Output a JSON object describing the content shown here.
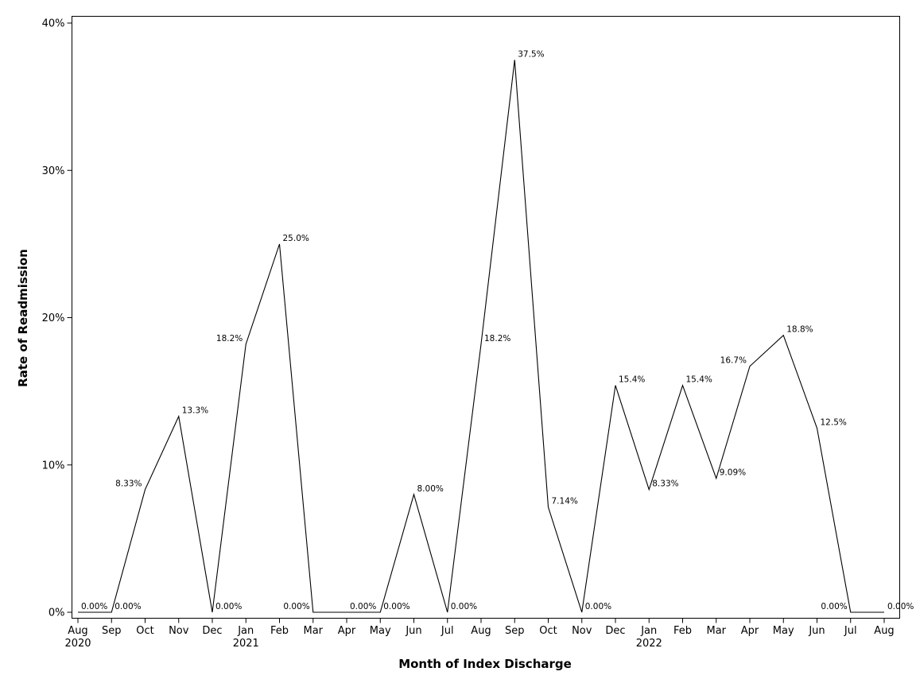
{
  "chart_data": {
    "type": "line",
    "xlabel": "Month of Index Discharge",
    "ylabel": "Rate of Readmission",
    "ylim": [
      0,
      40
    ],
    "y_ticks": [
      {
        "value": 0,
        "label": "0%"
      },
      {
        "value": 10,
        "label": "10%"
      },
      {
        "value": 20,
        "label": "20%"
      },
      {
        "value": 30,
        "label": "30%"
      },
      {
        "value": 40,
        "label": "40%"
      }
    ],
    "grid": false,
    "legend": "none",
    "x": [
      "2020-08",
      "2020-09",
      "2020-10",
      "2020-11",
      "2020-12",
      "2021-01",
      "2021-02",
      "2021-03",
      "2021-04",
      "2021-05",
      "2021-06",
      "2021-07",
      "2021-08",
      "2021-09",
      "2021-10",
      "2021-11",
      "2021-12",
      "2022-01",
      "2022-02",
      "2022-03",
      "2022-04",
      "2022-05",
      "2022-06",
      "2022-07",
      "2022-08"
    ],
    "x_tick_labels": [
      "Aug",
      "Sep",
      "Oct",
      "Nov",
      "Dec",
      "Jan",
      "Feb",
      "Mar",
      "Apr",
      "May",
      "Jun",
      "Jul",
      "Aug",
      "Sep",
      "Oct",
      "Nov",
      "Dec",
      "Jan",
      "Feb",
      "Mar",
      "Apr",
      "May",
      "Jun",
      "Jul",
      "Aug"
    ],
    "x_year_labels": [
      {
        "index": 0,
        "label": "2020"
      },
      {
        "index": 5,
        "label": "2021"
      },
      {
        "index": 17,
        "label": "2022"
      }
    ],
    "series": [
      {
        "values": [
          0,
          0,
          8.33,
          13.3,
          0,
          18.2,
          25.0,
          0,
          0,
          0,
          8.0,
          0,
          18.2,
          37.5,
          7.14,
          0,
          15.4,
          8.33,
          15.4,
          9.09,
          16.7,
          18.8,
          12.5,
          0,
          0
        ],
        "data_labels": [
          "0.00%",
          "0.00%",
          "8.33%",
          "13.3%",
          "0.00%",
          "18.2%",
          "25.0%",
          "0.00%",
          "0.00%",
          "0.00%",
          "8.00%",
          "0.00%",
          "18.2%",
          "37.5%",
          "7.14%",
          "0.00%",
          "15.4%",
          "8.33%",
          "15.4%",
          "9.09%",
          "16.7%",
          "18.8%",
          "12.5%",
          "0.00%",
          "0.00%"
        ],
        "label_side": [
          "right",
          "right",
          "left",
          "right",
          "right",
          "left",
          "right",
          "left",
          "right",
          "right",
          "right",
          "right",
          "right",
          "right",
          "right",
          "right",
          "right",
          "right",
          "right",
          "right",
          "left",
          "right",
          "right",
          "left",
          "right"
        ],
        "color": "#000000"
      }
    ]
  }
}
